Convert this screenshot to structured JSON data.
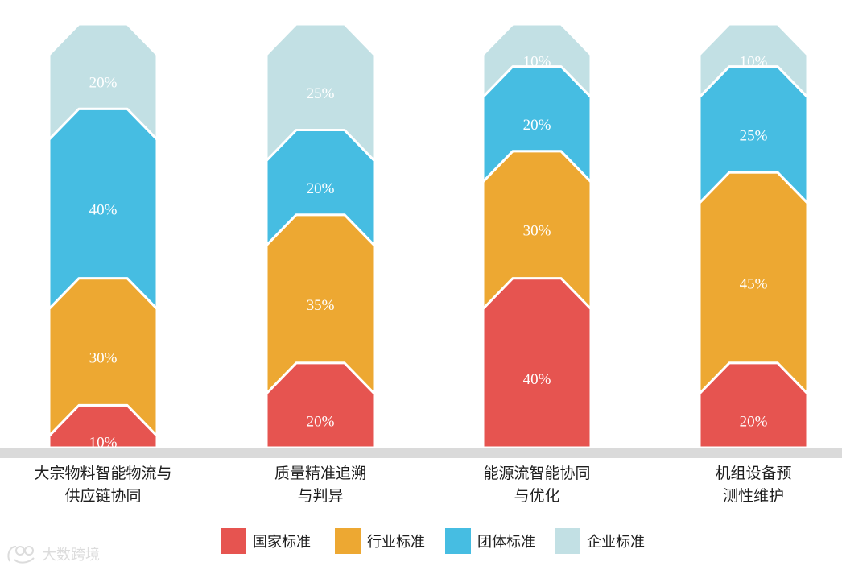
{
  "chart_data": {
    "type": "bar",
    "stacked": true,
    "percent": true,
    "categories": [
      [
        "大宗物料智能物流与",
        "供应链协同"
      ],
      [
        "质量精准追溯",
        "与判异"
      ],
      [
        "能源流智能协同",
        "与优化"
      ],
      [
        "机组设备预",
        "测性维护"
      ]
    ],
    "series": [
      {
        "name": "国家标准",
        "color": "#e65450",
        "values": [
          10,
          20,
          40,
          20
        ]
      },
      {
        "name": "行业标准",
        "color": "#eda832",
        "values": [
          30,
          35,
          30,
          45
        ]
      },
      {
        "name": "团体标准",
        "color": "#46bde2",
        "values": [
          40,
          20,
          20,
          25
        ]
      },
      {
        "name": "企业标准",
        "color": "#c2e0e4",
        "values": [
          20,
          25,
          10,
          10
        ]
      }
    ],
    "value_suffix": "%",
    "ylim": [
      0,
      100
    ],
    "grid": false,
    "legend": "bottom-center",
    "baseline_color": "#dadada"
  },
  "watermark": {
    "text": "大数跨境"
  }
}
